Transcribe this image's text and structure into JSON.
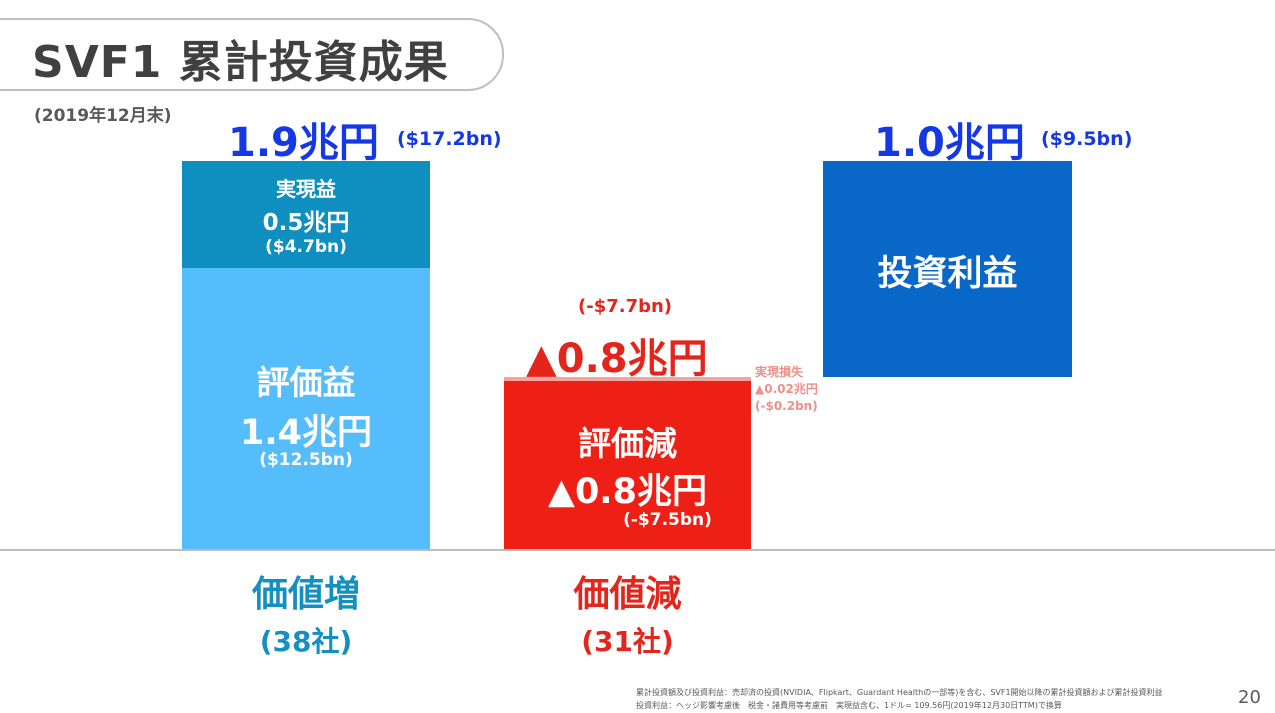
{
  "title": "SVF1 累計投資成果",
  "date_note": "(2019年12月末)",
  "value_increase": {
    "total_jpy": "1.9兆円",
    "total_usd": "($17.2bn)",
    "realized": {
      "label": "実現益",
      "jpy": "0.5兆円",
      "usd": "($4.7bn)"
    },
    "unrealized": {
      "label": "評価益",
      "jpy": "1.4兆円",
      "usd": "($12.5bn)"
    },
    "category_label": "価値増",
    "count": "(38社)"
  },
  "value_decrease": {
    "total_usd": "(-$7.7bn)",
    "total_jpy": "▲0.8兆円",
    "realized_loss": {
      "label": "実現損失",
      "jpy": "▲0.02兆円",
      "usd": "(-$0.2bn)"
    },
    "valuation_loss": {
      "label": "評価減",
      "jpy": "▲0.8兆円",
      "usd": "(-$7.5bn)"
    },
    "category_label": "価値減",
    "count": "(31社)"
  },
  "investment_profit": {
    "total_jpy": "1.0兆円",
    "total_usd": "($9.5bn)",
    "label": "投資利益"
  },
  "footnotes": [
    "累計投資額及び投資利益：売却済の投資(NVIDIA、Flipkart、Guardant Healthの一部等)を含む、SVF1開始以降の累計投資額および累計投資利益",
    "投資利益：ヘッジ影響考慮後　税金・諸費用等考慮前　実現益含む、1ドル= 109.56円(2019年12月30日TTM)で換算"
  ],
  "page_number": "20",
  "colors": {
    "realized": "#0f8fc0",
    "unrealized": "#56bdfc",
    "valuation_loss": "#ee1f14",
    "realized_loss": "#f4a4a0",
    "investment_profit": "#0967c8",
    "total_text": "#1438e6",
    "negative_text": "#e3251b"
  }
}
